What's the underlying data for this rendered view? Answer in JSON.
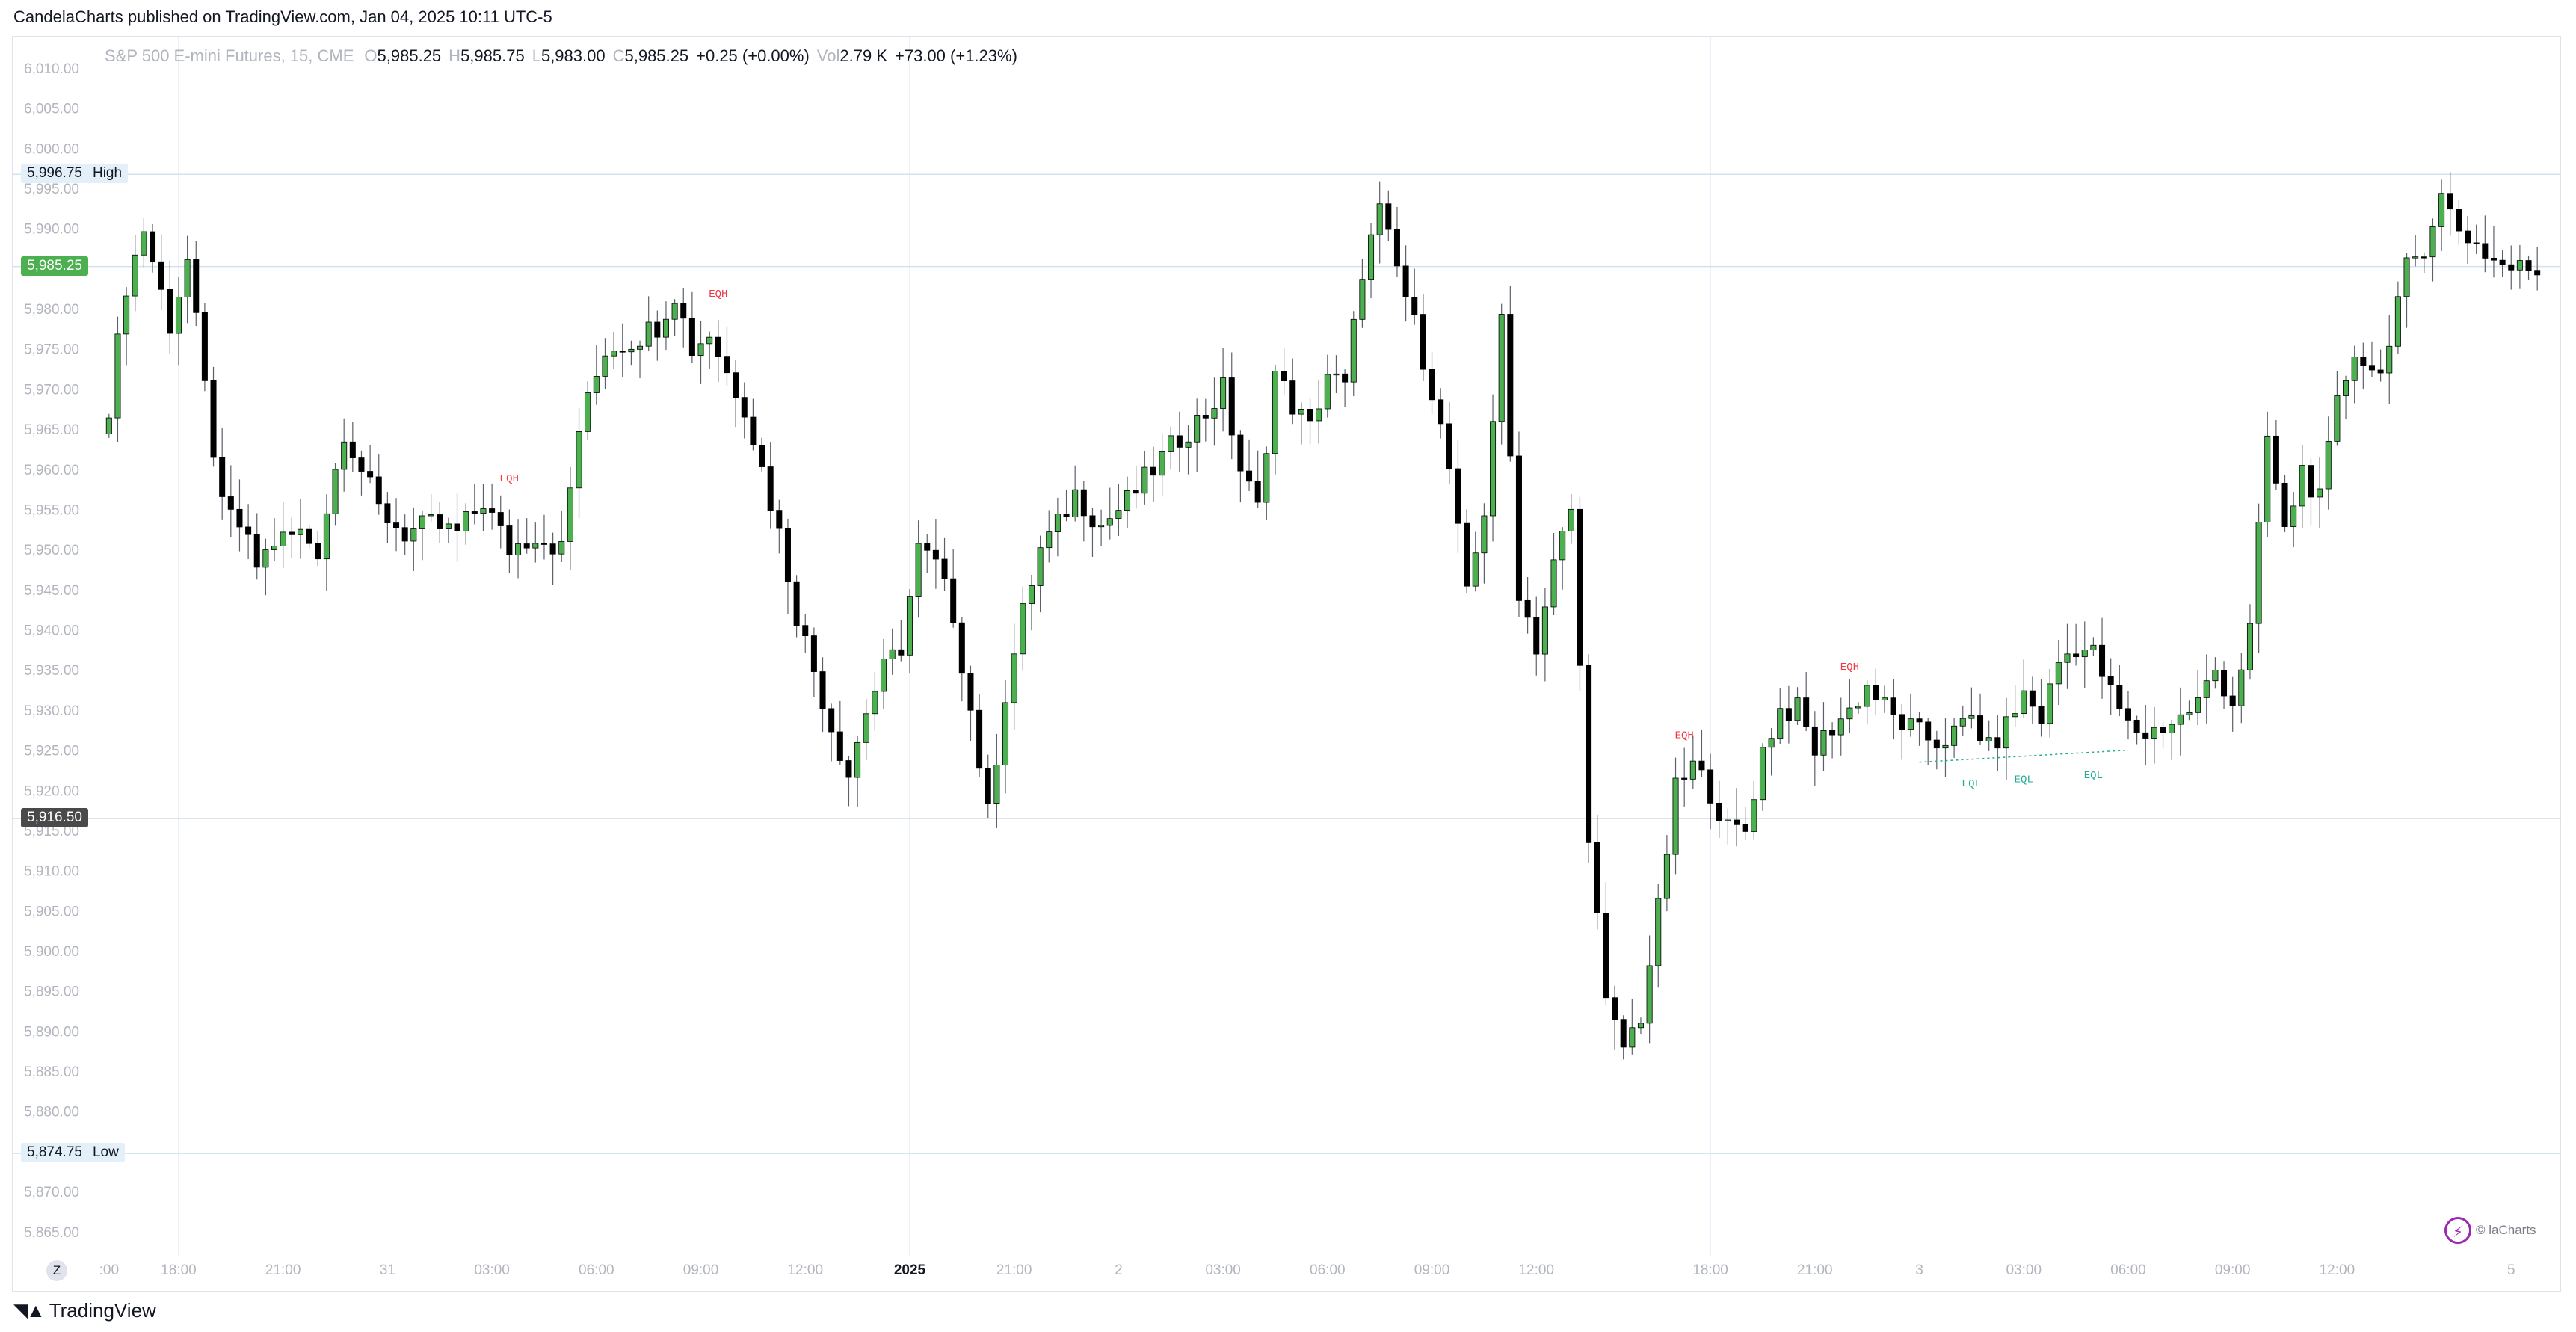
{
  "header": {
    "published": "CandelaCharts published on TradingView.com, Jan 04, 2025 10:11 UTC-5"
  },
  "legend": {
    "symbol": "S&P 500 E-mini Futures, 15, CME",
    "o_label": "O",
    "o_value": "5,985.25",
    "h_label": "H",
    "h_value": "5,985.75",
    "l_label": "L",
    "l_value": "5,983.00",
    "c_label": "C",
    "c_value": "5,985.25",
    "change": "+0.25 (+0.00%)",
    "vol_label": "Vol",
    "vol_value": "2.79 K",
    "vol_change": "+73.00 (+1.23%)"
  },
  "footer": {
    "brand": "TradingView",
    "z_button": "Z"
  },
  "watermark": {
    "text": "© laCharts",
    "icon": "lightning-bolt-icon"
  },
  "colors": {
    "up": "#4caf50",
    "down": "#000000",
    "eqh": "#f23645",
    "eql": "#22ab94",
    "grid": "#e6ecf5",
    "hline": "#d1e3ee"
  },
  "chart_data": {
    "type": "candlestick",
    "symbol": "S&P 500 E-mini Futures",
    "interval": "15",
    "ylim": [
      5862,
      6014
    ],
    "y_ticks": [
      "6,010.00",
      "6,005.00",
      "6,000.00",
      "5,995.00",
      "5,990.00",
      "5,985.00",
      "5,980.00",
      "5,975.00",
      "5,970.00",
      "5,965.00",
      "5,960.00",
      "5,955.00",
      "5,950.00",
      "5,945.00",
      "5,940.00",
      "5,935.00",
      "5,930.00",
      "5,925.00",
      "5,920.00",
      "5,915.00",
      "5,910.00",
      "5,905.00",
      "5,900.00",
      "5,895.00",
      "5,890.00",
      "5,885.00",
      "5,880.00",
      "5,875.00",
      "5,870.00",
      "5,865.00"
    ],
    "x_ticks": [
      {
        "i": 0,
        "label": ":00",
        "bold": false
      },
      {
        "i": 8,
        "label": "18:00",
        "bold": false
      },
      {
        "i": 20,
        "label": "21:00",
        "bold": false
      },
      {
        "i": 32,
        "label": "31",
        "bold": false
      },
      {
        "i": 44,
        "label": "03:00",
        "bold": false
      },
      {
        "i": 56,
        "label": "06:00",
        "bold": false
      },
      {
        "i": 68,
        "label": "09:00",
        "bold": false
      },
      {
        "i": 80,
        "label": "12:00",
        "bold": false
      },
      {
        "i": 92,
        "label": "2025",
        "bold": true
      },
      {
        "i": 104,
        "label": "21:00",
        "bold": false
      },
      {
        "i": 116,
        "label": "2",
        "bold": false
      },
      {
        "i": 128,
        "label": "03:00",
        "bold": false
      },
      {
        "i": 140,
        "label": "06:00",
        "bold": false
      },
      {
        "i": 152,
        "label": "09:00",
        "bold": false
      },
      {
        "i": 164,
        "label": "12:00",
        "bold": false
      },
      {
        "i": 184,
        "label": "18:00",
        "bold": false
      },
      {
        "i": 196,
        "label": "21:00",
        "bold": false
      },
      {
        "i": 208,
        "label": "3",
        "bold": false
      },
      {
        "i": 220,
        "label": "03:00",
        "bold": false
      },
      {
        "i": 232,
        "label": "06:00",
        "bold": false
      },
      {
        "i": 244,
        "label": "09:00",
        "bold": false
      },
      {
        "i": 256,
        "label": "12:00",
        "bold": false
      },
      {
        "i": 276,
        "label": "5",
        "bold": false
      }
    ],
    "x_vlines": [
      8,
      92,
      184
    ],
    "levels": [
      {
        "name": "High",
        "value": 5996.75,
        "label": "5,996.75",
        "text": "High"
      },
      {
        "name": "Low",
        "value": 5874.75,
        "label": "5,874.75",
        "text": "Low"
      },
      {
        "name": "Last",
        "value": 5985.25,
        "label": "5,985.25",
        "text": ""
      },
      {
        "name": "Cursor",
        "value": 5916.5,
        "label": "5,916.50",
        "text": ""
      }
    ],
    "annotations": [
      {
        "text": "EQH",
        "i": 46,
        "y": 5958.5,
        "kind": "eqh"
      },
      {
        "text": "EQH",
        "i": 70,
        "y": 5981.5,
        "kind": "eqh"
      },
      {
        "text": "EQH",
        "i": 181,
        "y": 5926.5,
        "kind": "eqh"
      },
      {
        "text": "EQH",
        "i": 200,
        "y": 5935.0,
        "kind": "eqh"
      },
      {
        "text": "EQL",
        "i": 214,
        "y": 5920.5,
        "kind": "eql"
      },
      {
        "text": "EQL",
        "i": 220,
        "y": 5921.0,
        "kind": "eql"
      },
      {
        "text": "EQL",
        "i": 228,
        "y": 5921.5,
        "kind": "eql"
      }
    ],
    "eql_line": {
      "i0": 208,
      "i1": 232,
      "y0": 5923.5,
      "y1": 5925.0
    },
    "anchors": [
      [
        0,
        5968
      ],
      [
        2,
        5983
      ],
      [
        4,
        5990
      ],
      [
        7,
        5978
      ],
      [
        9,
        5986
      ],
      [
        11,
        5970
      ],
      [
        13,
        5955
      ],
      [
        15,
        5953
      ],
      [
        17,
        5948
      ],
      [
        19,
        5951
      ],
      [
        22,
        5952
      ],
      [
        24,
        5950
      ],
      [
        27,
        5965
      ],
      [
        29,
        5960
      ],
      [
        31,
        5955
      ],
      [
        34,
        5952
      ],
      [
        37,
        5953
      ],
      [
        40,
        5952
      ],
      [
        43,
        5956
      ],
      [
        46,
        5950
      ],
      [
        49,
        5952
      ],
      [
        52,
        5950
      ],
      [
        54,
        5965
      ],
      [
        57,
        5975
      ],
      [
        60,
        5976
      ],
      [
        63,
        5978
      ],
      [
        65,
        5982
      ],
      [
        67,
        5975
      ],
      [
        69,
        5977
      ],
      [
        71,
        5972
      ],
      [
        73,
        5968
      ],
      [
        75,
        5960
      ],
      [
        77,
        5952
      ],
      [
        79,
        5942
      ],
      [
        81,
        5935
      ],
      [
        83,
        5928
      ],
      [
        85,
        5922
      ],
      [
        87,
        5930
      ],
      [
        89,
        5935
      ],
      [
        91,
        5938
      ],
      [
        93,
        5950
      ],
      [
        95,
        5948
      ],
      [
        97,
        5942
      ],
      [
        99,
        5930
      ],
      [
        101,
        5917
      ],
      [
        103,
        5932
      ],
      [
        105,
        5942
      ],
      [
        107,
        5950
      ],
      [
        109,
        5953
      ],
      [
        111,
        5957
      ],
      [
        114,
        5953
      ],
      [
        117,
        5956
      ],
      [
        120,
        5960
      ],
      [
        123,
        5964
      ],
      [
        126,
        5967
      ],
      [
        128,
        5970
      ],
      [
        130,
        5960
      ],
      [
        132,
        5955
      ],
      [
        134,
        5972
      ],
      [
        136,
        5968
      ],
      [
        138,
        5965
      ],
      [
        140,
        5972
      ],
      [
        142,
        5970
      ],
      [
        144,
        5985
      ],
      [
        146,
        5992
      ],
      [
        148,
        5985
      ],
      [
        150,
        5978
      ],
      [
        152,
        5970
      ],
      [
        154,
        5960
      ],
      [
        156,
        5944
      ],
      [
        158,
        5955
      ],
      [
        160,
        5978
      ],
      [
        162,
        5945
      ],
      [
        164,
        5938
      ],
      [
        166,
        5948
      ],
      [
        168,
        5955
      ],
      [
        170,
        5915
      ],
      [
        172,
        5893
      ],
      [
        174,
        5888
      ],
      [
        176,
        5892
      ],
      [
        178,
        5905
      ],
      [
        180,
        5920
      ],
      [
        182,
        5923
      ],
      [
        184,
        5920
      ],
      [
        186,
        5915
      ],
      [
        188,
        5915
      ],
      [
        190,
        5925
      ],
      [
        192,
        5930
      ],
      [
        194,
        5930
      ],
      [
        196,
        5925
      ],
      [
        198,
        5928
      ],
      [
        200,
        5930
      ],
      [
        202,
        5933
      ],
      [
        205,
        5929
      ],
      [
        208,
        5927
      ],
      [
        210,
        5926
      ],
      [
        212,
        5927
      ],
      [
        214,
        5929
      ],
      [
        216,
        5925
      ],
      [
        218,
        5928
      ],
      [
        220,
        5932
      ],
      [
        222,
        5929
      ],
      [
        224,
        5936
      ],
      [
        226,
        5938
      ],
      [
        228,
        5937
      ],
      [
        230,
        5932
      ],
      [
        232,
        5928
      ],
      [
        234,
        5927
      ],
      [
        236,
        5928
      ],
      [
        238,
        5929
      ],
      [
        240,
        5931
      ],
      [
        242,
        5935
      ],
      [
        244,
        5931
      ],
      [
        246,
        5940
      ],
      [
        248,
        5964
      ],
      [
        250,
        5952
      ],
      [
        252,
        5960
      ],
      [
        254,
        5956
      ],
      [
        256,
        5968
      ],
      [
        258,
        5975
      ],
      [
        260,
        5972
      ],
      [
        262,
        5975
      ],
      [
        264,
        5985
      ],
      [
        266,
        5988
      ],
      [
        268,
        5994
      ],
      [
        270,
        5990
      ],
      [
        272,
        5988
      ],
      [
        274,
        5986
      ],
      [
        276,
        5985
      ]
    ],
    "series": [
      {
        "name": "S&P 500 E-mini Futures, 15, CME",
        "values": "open-high-low-close candles generated from anchors"
      }
    ]
  }
}
